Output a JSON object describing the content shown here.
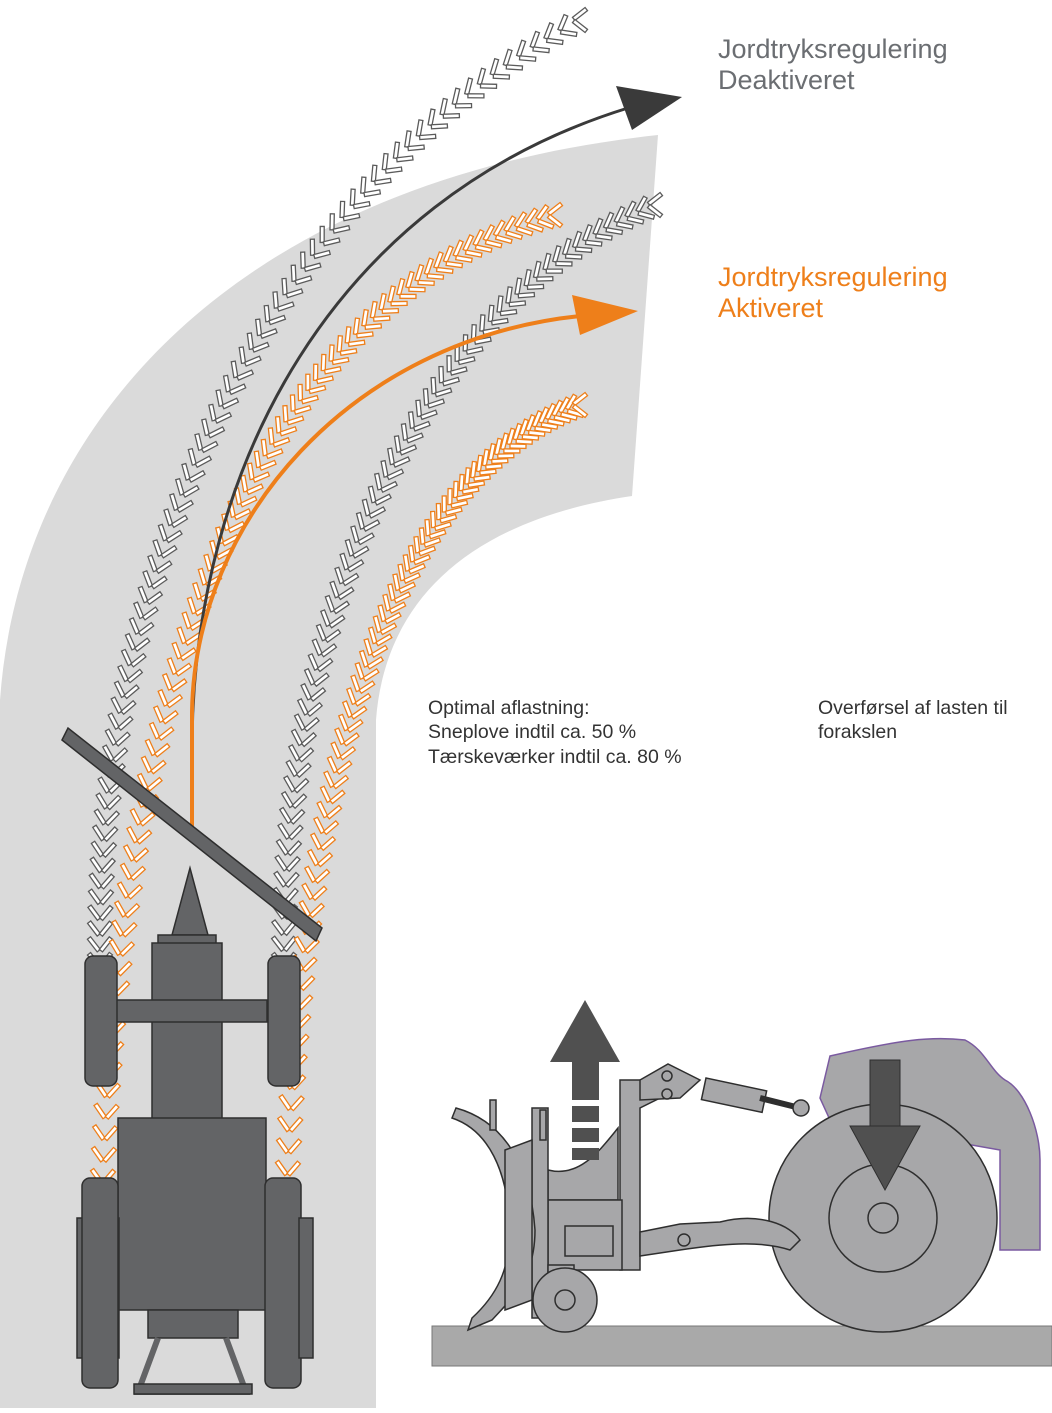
{
  "labels": {
    "deactivated": {
      "line1": "Jordtryksregulering",
      "line2": "Deaktiveret",
      "color": "#6b6e72"
    },
    "activated": {
      "line1": "Jordtryksregulering",
      "line2": "Aktiveret",
      "color": "#ee7f1a"
    },
    "optimal": {
      "line1": "Optimal aflastning:",
      "line2": "Sneplove indtil ca. 50 %",
      "line3": "Tærskeværker indtil ca. 80 %"
    },
    "transfer": {
      "line1": "Overførsel af lasten til",
      "line2": "forakslen"
    }
  },
  "colors": {
    "field": "#dadada",
    "tread_gray": "#5b5b5b",
    "tread_orange": "#ee7f1a",
    "machine": "#636466",
    "machine_light": "#a7a7a9",
    "ground": "#a9a9a9",
    "arrow_dark": "#505050"
  }
}
